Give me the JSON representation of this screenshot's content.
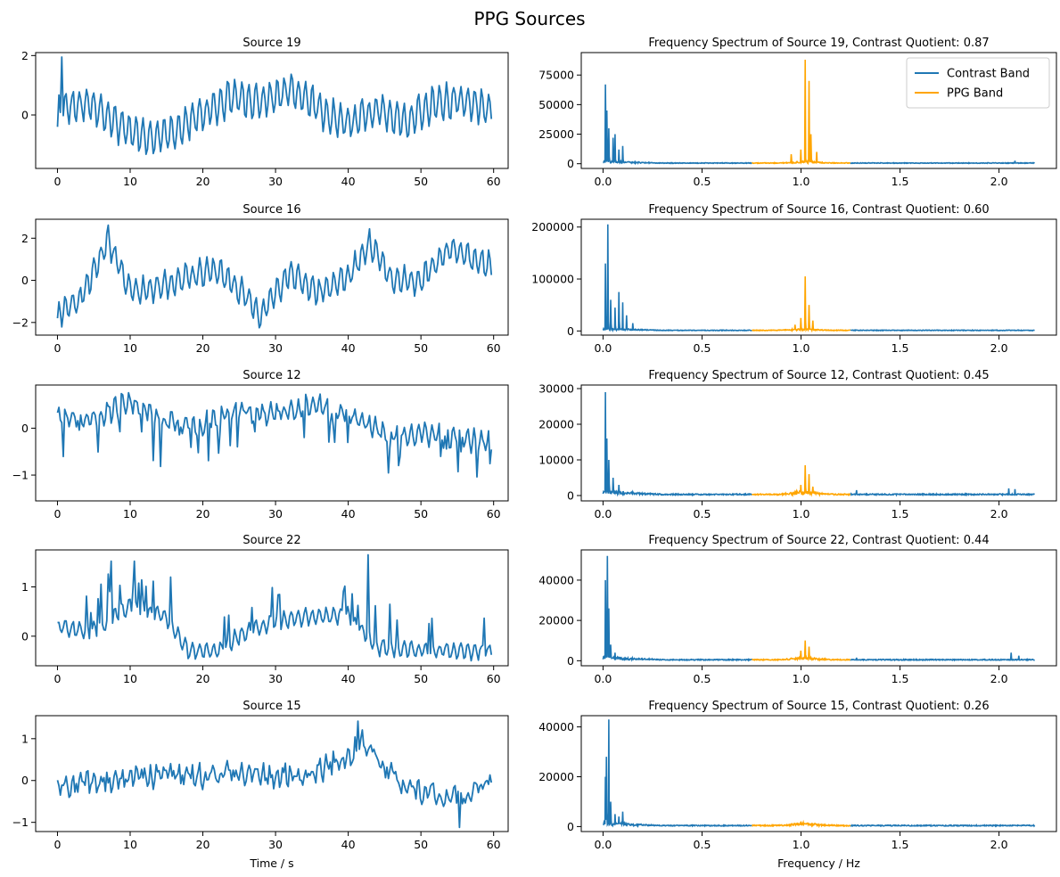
{
  "figure": {
    "title": "PPG Sources"
  },
  "colors": {
    "signal": "#1f77b4",
    "contrast_band": "#1f77b4",
    "ppg_band": "#ffa500"
  },
  "chart_data": [
    {
      "type": "line",
      "title": "Source 19",
      "xlabel": "",
      "ylabel": "",
      "xlim": [
        -3,
        62
      ],
      "ylim": [
        -1.8,
        2.1
      ],
      "xticks": [
        0,
        10,
        20,
        30,
        40,
        50,
        60
      ],
      "xtick_labels": [
        "0",
        "10",
        "20",
        "30",
        "40",
        "50",
        "60"
      ],
      "yticks": [
        0,
        2
      ],
      "ytick_labels": [
        "0",
        "2"
      ],
      "signal": {
        "duration": 59.7,
        "samples": 300,
        "ppg_hz": 1.03,
        "ppg_amp": 0.55,
        "slow": [
          [
            0,
            0.2
          ],
          [
            4,
            0.4
          ],
          [
            8,
            -0.3
          ],
          [
            12,
            -0.8
          ],
          [
            16,
            -0.5
          ],
          [
            20,
            0.0
          ],
          [
            24,
            0.6
          ],
          [
            28,
            0.4
          ],
          [
            32,
            0.9
          ],
          [
            36,
            0.2
          ],
          [
            40,
            -0.3
          ],
          [
            44,
            0.2
          ],
          [
            48,
            -0.2
          ],
          [
            52,
            0.4
          ],
          [
            56,
            0.5
          ],
          [
            59.7,
            0.2
          ]
        ],
        "peaks": [
          [
            0.5,
            1.95
          ],
          [
            0.0,
            -0.4
          ]
        ],
        "noise": 0.15,
        "seed": 19
      }
    },
    {
      "type": "line",
      "title": "Frequency Spectrum of Source 19, Contrast Quotient: 0.87",
      "xlabel": "",
      "ylabel": "",
      "xlim": [
        -0.11,
        2.29
      ],
      "ylim": [
        -4000,
        94000
      ],
      "xticks": [
        0.0,
        0.5,
        1.0,
        1.5,
        2.0
      ],
      "xtick_labels": [
        "0.0",
        "0.5",
        "1.0",
        "1.5",
        "2.0"
      ],
      "yticks": [
        0,
        25000,
        50000,
        75000
      ],
      "ytick_labels": [
        "0",
        "25000",
        "50000",
        "75000"
      ],
      "legend": {
        "location": "top-right",
        "entries": [
          {
            "name": "Contrast Band",
            "color": "#1f77b4"
          },
          {
            "name": "PPG Band",
            "color": "#ffa500"
          }
        ]
      },
      "spectrum": {
        "fmax": 2.18,
        "ppg_band": [
          0.75,
          1.25
        ],
        "floor": 700,
        "spikes": [
          [
            0.012,
            67000
          ],
          [
            0.02,
            45000
          ],
          [
            0.03,
            30000
          ],
          [
            0.05,
            22000
          ],
          [
            0.06,
            25000
          ],
          [
            0.08,
            12000
          ],
          [
            0.1,
            15000
          ],
          [
            1.0,
            12000
          ],
          [
            1.02,
            88000
          ],
          [
            1.04,
            70000
          ],
          [
            1.05,
            25000
          ],
          [
            1.08,
            10000
          ],
          [
            0.95,
            8000
          ],
          [
            2.08,
            2500
          ]
        ],
        "seed": 119
      }
    },
    {
      "type": "line",
      "title": "Source 16",
      "xlabel": "",
      "ylabel": "",
      "xlim": [
        -3,
        62
      ],
      "ylim": [
        -2.6,
        2.9
      ],
      "xticks": [
        0,
        10,
        20,
        30,
        40,
        50,
        60
      ],
      "xtick_labels": [
        "0",
        "10",
        "20",
        "30",
        "40",
        "50",
        "60"
      ],
      "yticks": [
        -2,
        0,
        2
      ],
      "ytick_labels": [
        "−2",
        "0",
        "2"
      ],
      "signal": {
        "duration": 59.7,
        "samples": 300,
        "ppg_hz": 1.03,
        "ppg_amp": 0.6,
        "slow": [
          [
            0,
            -1.6
          ],
          [
            3,
            -1.0
          ],
          [
            7,
            1.9
          ],
          [
            10,
            -0.6
          ],
          [
            14,
            -0.3
          ],
          [
            18,
            0.2
          ],
          [
            22,
            0.5
          ],
          [
            26,
            -0.8
          ],
          [
            28,
            -1.6
          ],
          [
            32,
            0.4
          ],
          [
            36,
            -0.6
          ],
          [
            40,
            0.2
          ],
          [
            43,
            1.8
          ],
          [
            46,
            0.0
          ],
          [
            50,
            0.0
          ],
          [
            54,
            1.5
          ],
          [
            57,
            1.0
          ],
          [
            59.7,
            0.7
          ]
        ],
        "peaks": [
          [
            0.0,
            -1.8
          ]
        ],
        "noise": 0.2,
        "seed": 16
      }
    },
    {
      "type": "line",
      "title": "Frequency Spectrum of Source 16, Contrast Quotient: 0.60",
      "xlabel": "",
      "ylabel": "",
      "xlim": [
        -0.11,
        2.29
      ],
      "ylim": [
        -8000,
        215000
      ],
      "xticks": [
        0.0,
        0.5,
        1.0,
        1.5,
        2.0
      ],
      "xtick_labels": [
        "0.0",
        "0.5",
        "1.0",
        "1.5",
        "2.0"
      ],
      "yticks": [
        0,
        100000,
        200000
      ],
      "ytick_labels": [
        "0",
        "100000",
        "200000"
      ],
      "spectrum": {
        "fmax": 2.18,
        "ppg_band": [
          0.75,
          1.25
        ],
        "floor": 1500,
        "spikes": [
          [
            0.012,
            130000
          ],
          [
            0.025,
            205000
          ],
          [
            0.04,
            60000
          ],
          [
            0.06,
            45000
          ],
          [
            0.08,
            75000
          ],
          [
            0.1,
            55000
          ],
          [
            0.12,
            30000
          ],
          [
            0.15,
            15000
          ],
          [
            1.0,
            25000
          ],
          [
            1.02,
            105000
          ],
          [
            1.04,
            50000
          ],
          [
            1.06,
            20000
          ],
          [
            0.97,
            12000
          ]
        ],
        "seed": 116
      }
    },
    {
      "type": "line",
      "title": "Source 12",
      "xlabel": "",
      "ylabel": "",
      "xlim": [
        -3,
        62
      ],
      "ylim": [
        -1.55,
        0.92
      ],
      "xticks": [
        0,
        10,
        20,
        30,
        40,
        50,
        60
      ],
      "xtick_labels": [
        "0",
        "10",
        "20",
        "30",
        "40",
        "50",
        "60"
      ],
      "yticks": [
        -1,
        0
      ],
      "ytick_labels": [
        "−1",
        "0"
      ],
      "signal": {
        "duration": 59.7,
        "samples": 300,
        "ppg_hz": 1.03,
        "ppg_amp": 0.18,
        "slow": [
          [
            0,
            0.3
          ],
          [
            5,
            0.2
          ],
          [
            10,
            0.6
          ],
          [
            15,
            0.1
          ],
          [
            20,
            0.1
          ],
          [
            25,
            0.4
          ],
          [
            30,
            0.3
          ],
          [
            35,
            0.5
          ],
          [
            40,
            0.3
          ],
          [
            45,
            -0.1
          ],
          [
            50,
            -0.1
          ],
          [
            55,
            -0.2
          ],
          [
            59.7,
            -0.3
          ]
        ],
        "dips": 0.09,
        "dip_depth": 0.9,
        "noise": 0.12,
        "seed": 12
      }
    },
    {
      "type": "line",
      "title": "Frequency Spectrum of Source 12, Contrast Quotient: 0.45",
      "xlabel": "",
      "ylabel": "",
      "xlim": [
        -0.11,
        2.29
      ],
      "ylim": [
        -1500,
        31000
      ],
      "xticks": [
        0.0,
        0.5,
        1.0,
        1.5,
        2.0
      ],
      "xtick_labels": [
        "0.0",
        "0.5",
        "1.0",
        "1.5",
        "2.0"
      ],
      "yticks": [
        0,
        10000,
        20000,
        30000
      ],
      "ytick_labels": [
        "0",
        "10000",
        "20000",
        "30000"
      ],
      "spectrum": {
        "fmax": 2.18,
        "ppg_band": [
          0.75,
          1.25
        ],
        "floor": 400,
        "spikes": [
          [
            0.012,
            29000
          ],
          [
            0.02,
            16000
          ],
          [
            0.03,
            10000
          ],
          [
            0.05,
            5000
          ],
          [
            0.08,
            3000
          ],
          [
            1.0,
            3000
          ],
          [
            1.02,
            8500
          ],
          [
            1.04,
            6000
          ],
          [
            1.06,
            2500
          ],
          [
            1.28,
            1500
          ],
          [
            2.05,
            2000
          ],
          [
            2.08,
            1800
          ]
        ],
        "seed": 112
      }
    },
    {
      "type": "line",
      "title": "Source 22",
      "xlabel": "",
      "ylabel": "",
      "xlim": [
        -3,
        62
      ],
      "ylim": [
        -0.6,
        1.75
      ],
      "xticks": [
        0,
        10,
        20,
        30,
        40,
        50,
        60
      ],
      "xtick_labels": [
        "0",
        "10",
        "20",
        "30",
        "40",
        "50",
        "60"
      ],
      "yticks": [
        0,
        1
      ],
      "ytick_labels": [
        "0",
        "1"
      ],
      "signal": {
        "duration": 59.7,
        "samples": 300,
        "ppg_hz": 1.03,
        "ppg_amp": 0.15,
        "slow": [
          [
            0,
            0.2
          ],
          [
            5,
            0.1
          ],
          [
            10,
            0.6
          ],
          [
            15,
            0.4
          ],
          [
            18,
            -0.3
          ],
          [
            22,
            -0.3
          ],
          [
            26,
            0.1
          ],
          [
            30,
            0.3
          ],
          [
            35,
            0.4
          ],
          [
            40,
            0.4
          ],
          [
            44,
            -0.2
          ],
          [
            50,
            -0.3
          ],
          [
            55,
            -0.3
          ],
          [
            59.7,
            -0.3
          ]
        ],
        "bursts": 0.09,
        "burst_height": 0.85,
        "peaks": [
          [
            42.8,
            1.65
          ],
          [
            10.5,
            1.52
          ],
          [
            7.4,
            1.52
          ]
        ],
        "noise": 0.06,
        "seed": 22
      }
    },
    {
      "type": "line",
      "title": "Frequency Spectrum of Source 22, Contrast Quotient: 0.44",
      "xlabel": "",
      "ylabel": "",
      "xlim": [
        -0.11,
        2.29
      ],
      "ylim": [
        -2500,
        55000
      ],
      "xticks": [
        0.0,
        0.5,
        1.0,
        1.5,
        2.0
      ],
      "xtick_labels": [
        "0.0",
        "0.5",
        "1.0",
        "1.5",
        "2.0"
      ],
      "yticks": [
        0,
        20000,
        40000
      ],
      "ytick_labels": [
        "0",
        "20000",
        "40000"
      ],
      "spectrum": {
        "fmax": 2.18,
        "ppg_band": [
          0.75,
          1.25
        ],
        "floor": 600,
        "spikes": [
          [
            0.012,
            40000
          ],
          [
            0.022,
            52000
          ],
          [
            0.03,
            26000
          ],
          [
            0.04,
            8000
          ],
          [
            0.06,
            4000
          ],
          [
            1.0,
            5000
          ],
          [
            1.02,
            10000
          ],
          [
            1.04,
            7000
          ],
          [
            1.28,
            1500
          ],
          [
            2.06,
            4000
          ],
          [
            2.1,
            2500
          ]
        ],
        "seed": 122
      }
    },
    {
      "type": "line",
      "title": "Source 15",
      "xlabel": "Time / s",
      "ylabel": "",
      "xlim": [
        -3,
        62
      ],
      "ylim": [
        -1.22,
        1.55
      ],
      "xticks": [
        0,
        10,
        20,
        30,
        40,
        50,
        60
      ],
      "xtick_labels": [
        "0",
        "10",
        "20",
        "30",
        "40",
        "50",
        "60"
      ],
      "yticks": [
        -1,
        0,
        1
      ],
      "ytick_labels": [
        "−1",
        "0",
        "1"
      ],
      "signal": {
        "duration": 59.7,
        "samples": 300,
        "ppg_hz": 1.03,
        "ppg_amp": 0.12,
        "slow": [
          [
            0,
            -0.2
          ],
          [
            5,
            0.0
          ],
          [
            10,
            0.1
          ],
          [
            15,
            0.1
          ],
          [
            20,
            0.1
          ],
          [
            25,
            0.2
          ],
          [
            30,
            0.1
          ],
          [
            35,
            0.2
          ],
          [
            40,
            0.5
          ],
          [
            42,
            1.0
          ],
          [
            44,
            0.5
          ],
          [
            48,
            -0.2
          ],
          [
            52,
            -0.3
          ],
          [
            56,
            -0.4
          ],
          [
            59.7,
            0.0
          ]
        ],
        "noise": 0.22,
        "peaks": [
          [
            41.3,
            1.42
          ],
          [
            55.3,
            -1.12
          ]
        ],
        "seed": 15
      }
    },
    {
      "type": "line",
      "title": "Frequency Spectrum of Source 15, Contrast Quotient: 0.26",
      "xlabel": "Frequency / Hz",
      "ylabel": "",
      "xlim": [
        -0.11,
        2.29
      ],
      "ylim": [
        -2000,
        44500
      ],
      "xticks": [
        0.0,
        0.5,
        1.0,
        1.5,
        2.0
      ],
      "xtick_labels": [
        "0.0",
        "0.5",
        "1.0",
        "1.5",
        "2.0"
      ],
      "yticks": [
        0,
        20000,
        40000
      ],
      "ytick_labels": [
        "0",
        "20000",
        "40000"
      ],
      "spectrum": {
        "fmax": 2.18,
        "ppg_band": [
          0.75,
          1.25
        ],
        "floor": 500,
        "spikes": [
          [
            0.012,
            20000
          ],
          [
            0.018,
            28000
          ],
          [
            0.03,
            43000
          ],
          [
            0.04,
            10000
          ],
          [
            0.06,
            5000
          ],
          [
            0.08,
            4000
          ],
          [
            0.1,
            6000
          ],
          [
            1.02,
            1200
          ],
          [
            1.05,
            1000
          ]
        ],
        "seed": 115
      }
    }
  ]
}
